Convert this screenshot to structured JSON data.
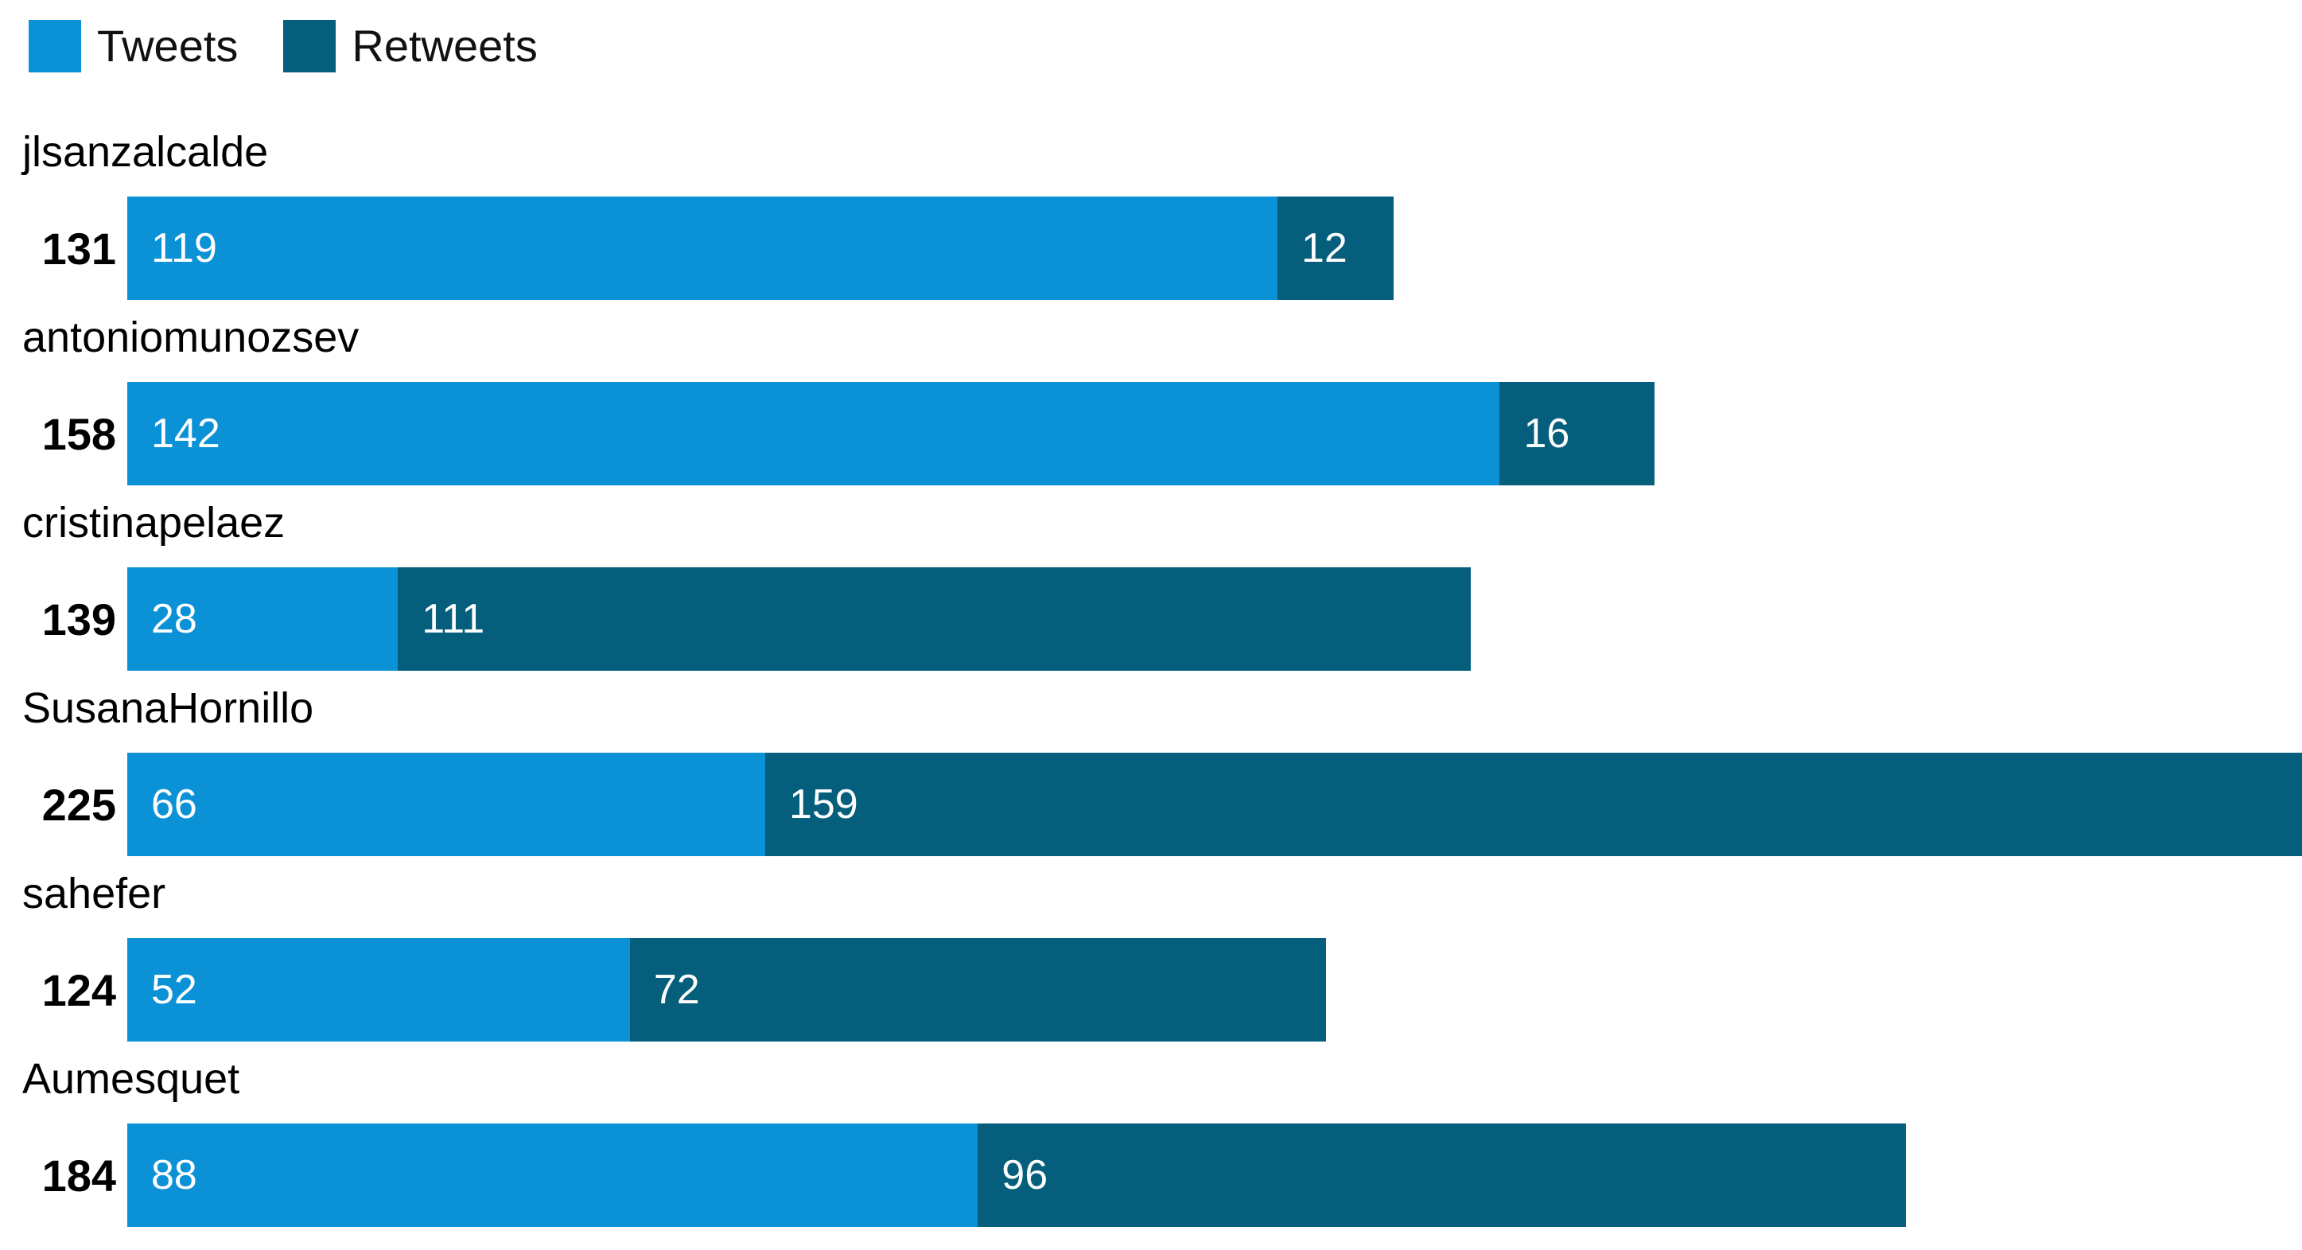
{
  "chart_data": {
    "type": "bar",
    "subtype": "horizontal-stacked",
    "title": "",
    "xlabel": "",
    "ylabel": "",
    "xmax": 225,
    "grid": false,
    "legend_position": "top-left",
    "series": [
      {
        "name": "Tweets",
        "color": "#0a91d6"
      },
      {
        "name": "Retweets",
        "color": "#045e7c"
      }
    ],
    "value_text_color": "#ffffff",
    "label_text_color": "#000000",
    "rows": [
      {
        "username": "jlsanzalcalde",
        "total": 131,
        "tweets": 119,
        "retweets": 12
      },
      {
        "username": "antoniomunozsev",
        "total": 158,
        "tweets": 142,
        "retweets": 16
      },
      {
        "username": "cristinapelaez",
        "total": 139,
        "tweets": 28,
        "retweets": 111
      },
      {
        "username": "SusanaHornillo",
        "total": 225,
        "tweets": 66,
        "retweets": 159
      },
      {
        "username": "sahefer",
        "total": 124,
        "tweets": 52,
        "retweets": 72
      },
      {
        "username": "Aumesquet",
        "total": 184,
        "tweets": 88,
        "retweets": 96
      }
    ]
  }
}
